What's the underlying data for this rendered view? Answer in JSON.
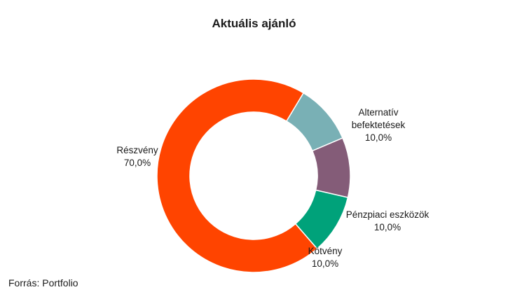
{
  "chart_data": {
    "type": "pie",
    "title": "Aktuális ajánló",
    "donut": true,
    "categories": [
      "Alternatív befektetések",
      "Pénzpiaci eszközök",
      "Kötvény",
      "Részvény"
    ],
    "values": [
      10.0,
      10.0,
      10.0,
      70.0
    ],
    "value_labels": [
      "10,0%",
      "10,0%",
      "10,0%",
      "70,0%"
    ],
    "colors": [
      "#79b0b5",
      "#845c78",
      "#00a27a",
      "#ff4400"
    ],
    "label_lines": [
      [
        "Alternatív",
        "befektetések"
      ],
      [
        "Pénzpiaci eszközök"
      ],
      [
        "Kötvény"
      ],
      [
        "Részvény"
      ]
    ],
    "legend": "none"
  },
  "source": "Forrás: Portfolio"
}
